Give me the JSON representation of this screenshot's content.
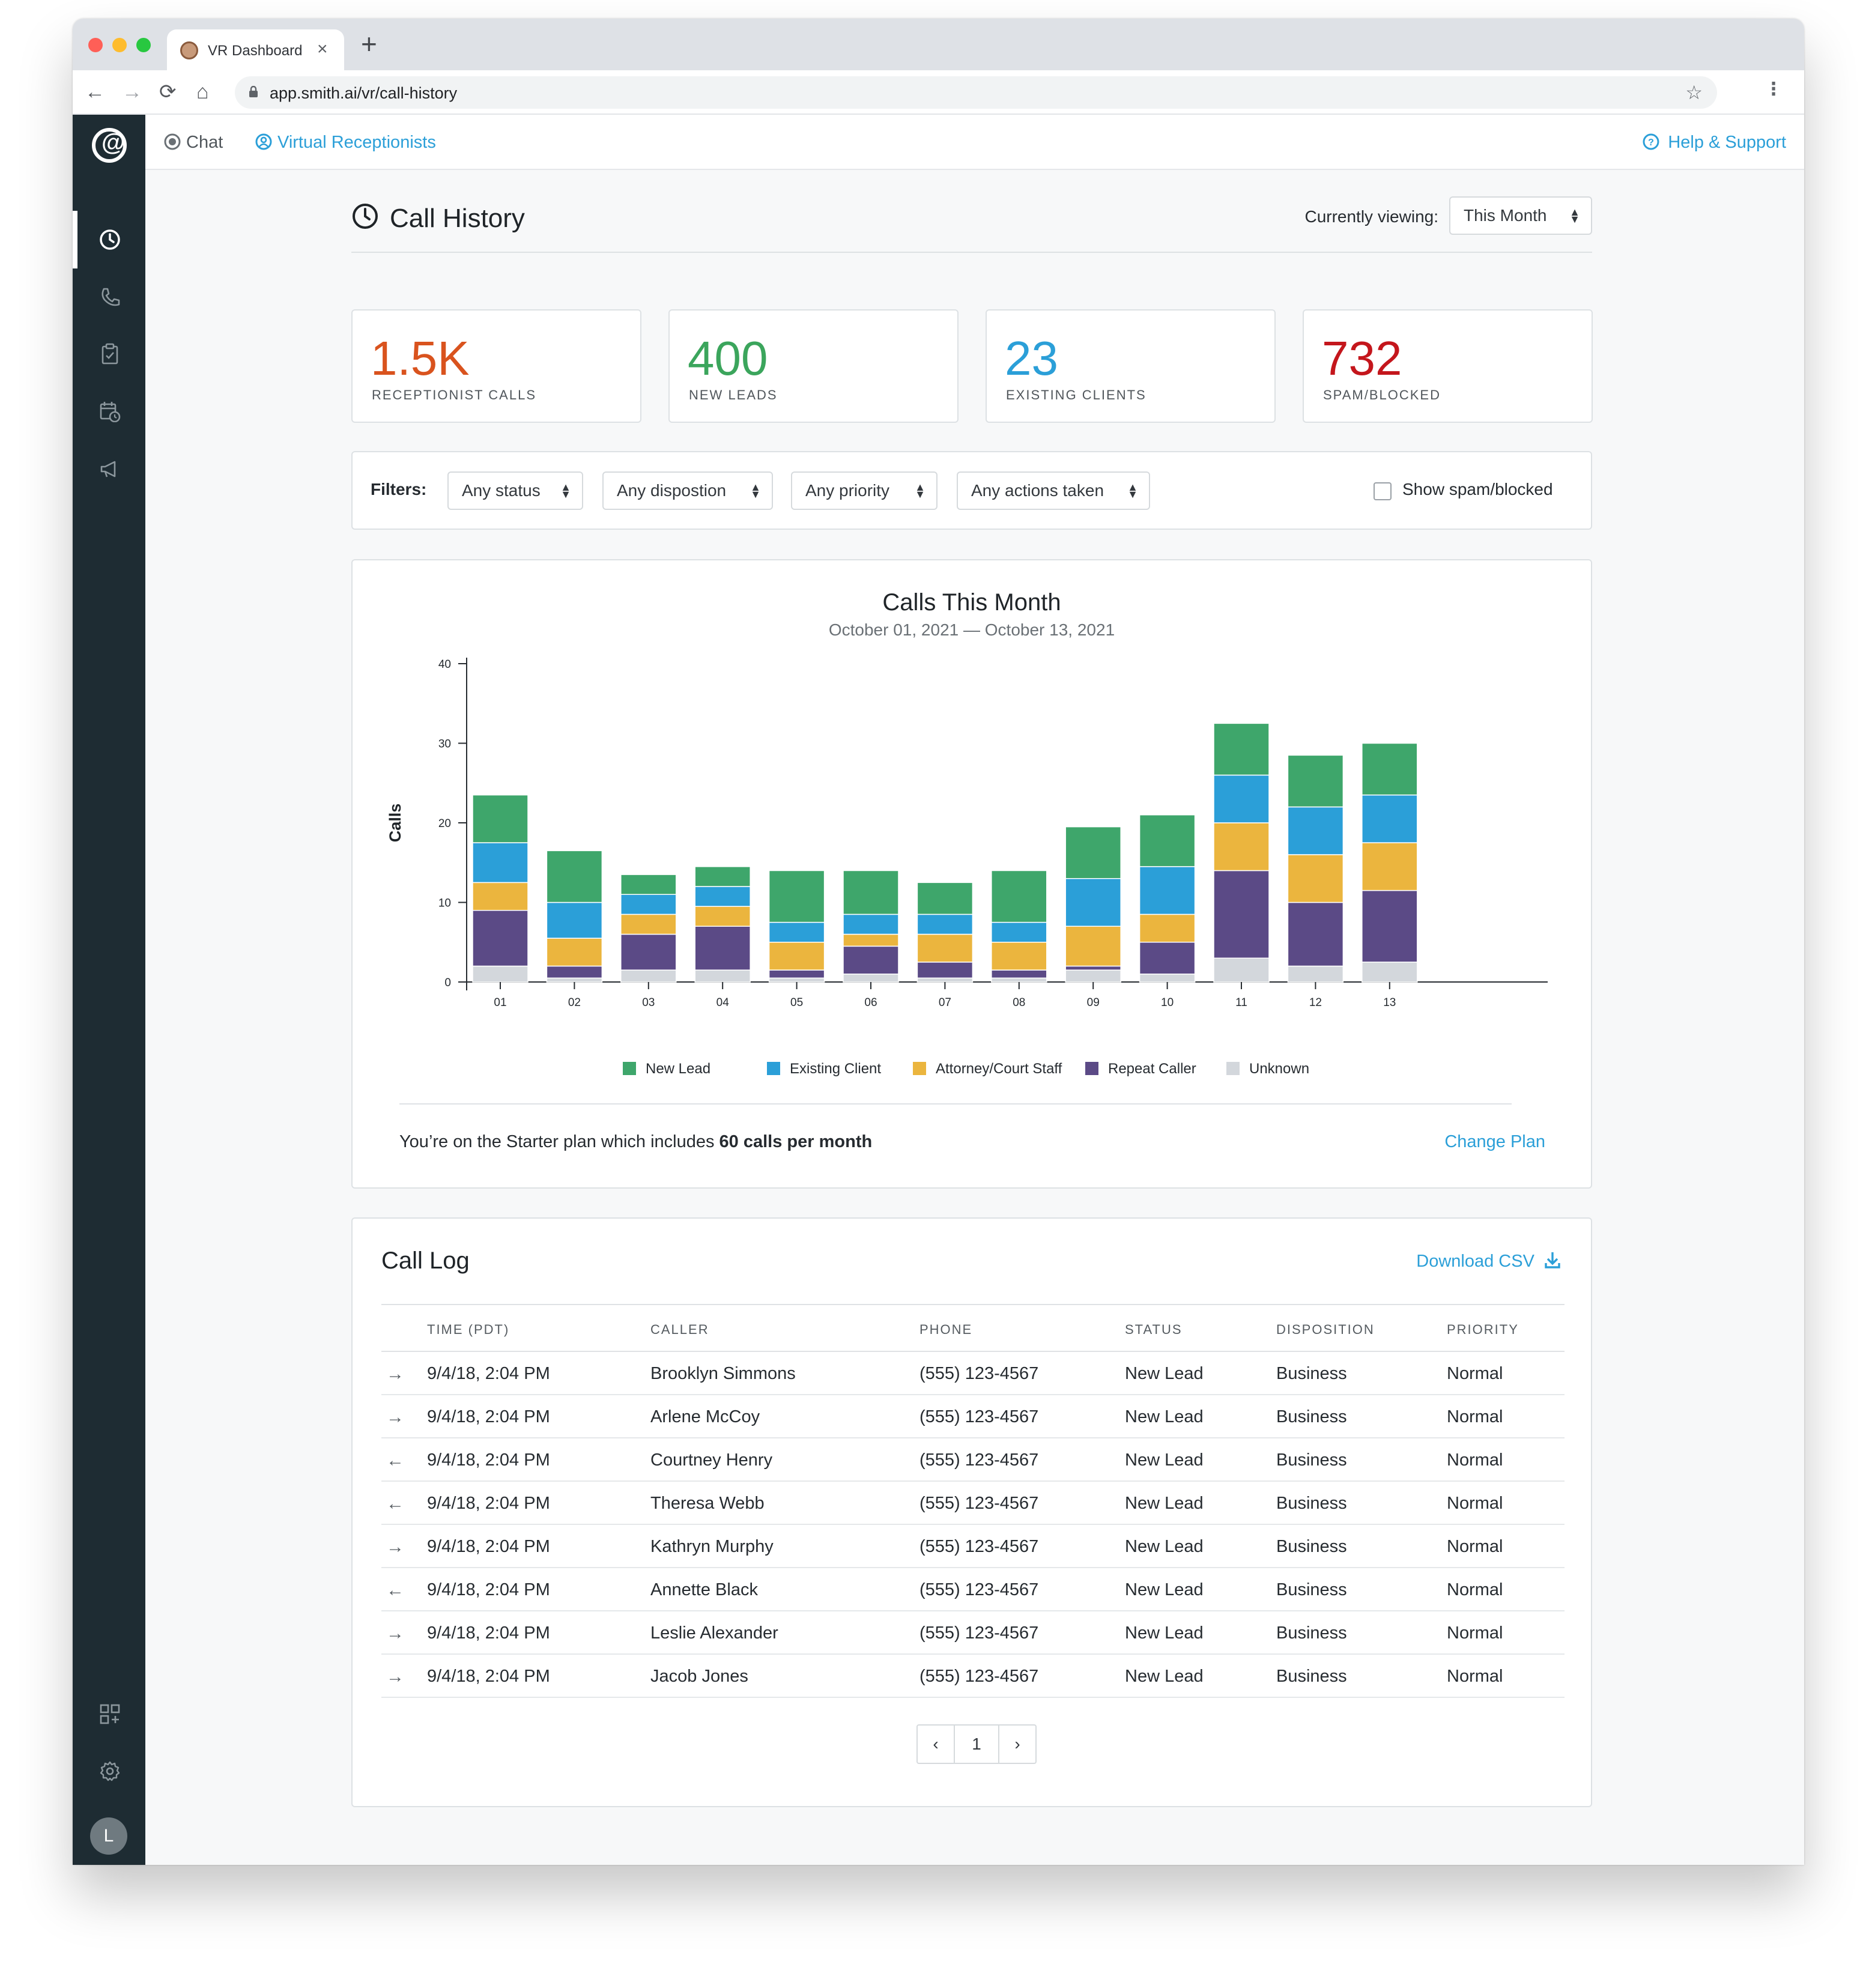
{
  "browser": {
    "tab_title": "VR Dashboard",
    "tab_close": "×",
    "new_tab": "+",
    "url": "app.smith.ai/vr/call-history",
    "back": "←",
    "forward": "→",
    "reload": "⟳",
    "home": "⌂",
    "bookmark": "☆",
    "menu": "⋮",
    "traffic_lights": [
      "#ff5f57",
      "#febc2e",
      "#28c840"
    ]
  },
  "sidebar": {
    "logo": "@",
    "items": [
      "clock-icon",
      "phone-icon",
      "clipboard-icon",
      "calendar-icon",
      "megaphone-icon"
    ],
    "bottom_items": [
      "apps-icon",
      "gear-icon"
    ],
    "avatar_initial": "L"
  },
  "topnav": {
    "chat": "Chat",
    "virtual_receptionists": "Virtual Receptionists",
    "help": "Help & Support"
  },
  "header": {
    "title": "Call History",
    "viewing_label": "Currently viewing:",
    "viewing_value": "This Month"
  },
  "stats": [
    {
      "value": "1.5K",
      "label": "RECEPTIONIST CALLS",
      "color": "#d9531e"
    },
    {
      "value": "400",
      "label": "NEW LEADS",
      "color": "#3ba55c"
    },
    {
      "value": "23",
      "label": "EXISTING CLIENTS",
      "color": "#2b9fd8"
    },
    {
      "value": "732",
      "label": "SPAM/BLOCKED",
      "color": "#c4161c"
    }
  ],
  "filters": {
    "label": "Filters:",
    "status": "Any status",
    "disposition": "Any dispostion",
    "priority": "Any priority",
    "actions": "Any actions taken",
    "spam_toggle": "Show spam/blocked"
  },
  "chart_data": {
    "type": "bar",
    "stacked": true,
    "title": "Calls This Month",
    "subtitle": "October 01, 2021 — October 13, 2021",
    "ylabel": "Calls",
    "xlabel": "",
    "ylim": [
      0,
      40
    ],
    "yticks": [
      0,
      10,
      20,
      30,
      40
    ],
    "categories": [
      "01",
      "02",
      "03",
      "04",
      "05",
      "06",
      "07",
      "08",
      "09",
      "10",
      "11",
      "12",
      "13"
    ],
    "series": [
      {
        "name": "Unknown",
        "color": "#d3d7dc",
        "values": [
          2,
          0.5,
          1.5,
          1.5,
          0.5,
          1,
          0.5,
          0.5,
          1.5,
          1,
          3,
          2,
          2.5
        ]
      },
      {
        "name": "Repeat Caller",
        "color": "#5b4a86",
        "values": [
          7,
          1.5,
          4.5,
          5.5,
          1,
          3.5,
          2,
          1,
          0.5,
          4,
          11,
          8,
          9
        ]
      },
      {
        "name": "Attorney/Court Staff",
        "color": "#ebb53e",
        "values": [
          3.5,
          3.5,
          2.5,
          2.5,
          3.5,
          1.5,
          3.5,
          3.5,
          5,
          3.5,
          6,
          6,
          6
        ]
      },
      {
        "name": "Existing Client",
        "color": "#2b9fd8",
        "values": [
          5,
          4.5,
          2.5,
          2.5,
          2.5,
          2.5,
          2.5,
          2.5,
          6,
          6,
          6,
          6,
          6
        ]
      },
      {
        "name": "New Lead",
        "color": "#3ea66b",
        "values": [
          6,
          6.5,
          2.5,
          2.5,
          6.5,
          5.5,
          4,
          6.5,
          6.5,
          6.5,
          6.5,
          6.5,
          6.5
        ]
      }
    ],
    "legend_order": [
      "New Lead",
      "Existing Client",
      "Attorney/Court Staff",
      "Repeat Caller",
      "Unknown"
    ],
    "legend_position": "bottom-center"
  },
  "plan": {
    "text_before": "You’re on the Starter plan which includes ",
    "text_bold": "60 calls per month",
    "change": "Change Plan"
  },
  "log": {
    "title": "Call Log",
    "download": "Download CSV",
    "columns": [
      "TIME (PDT)",
      "CALLER",
      "PHONE",
      "STATUS",
      "DISPOSITION",
      "PRIORITY"
    ],
    "rows": [
      {
        "dir": "→",
        "time": "9/4/18, 2:04 PM",
        "caller": "Brooklyn Simmons",
        "phone": "(555) 123-4567",
        "status": "New Lead",
        "disposition": "Business",
        "priority": "Normal"
      },
      {
        "dir": "→",
        "time": "9/4/18, 2:04 PM",
        "caller": "Arlene McCoy",
        "phone": "(555) 123-4567",
        "status": "New Lead",
        "disposition": "Business",
        "priority": "Normal"
      },
      {
        "dir": "←",
        "time": "9/4/18, 2:04 PM",
        "caller": "Courtney Henry",
        "phone": "(555) 123-4567",
        "status": "New Lead",
        "disposition": "Business",
        "priority": "Normal"
      },
      {
        "dir": "←",
        "time": "9/4/18, 2:04 PM",
        "caller": "Theresa Webb",
        "phone": "(555) 123-4567",
        "status": "New Lead",
        "disposition": "Business",
        "priority": "Normal"
      },
      {
        "dir": "→",
        "time": "9/4/18, 2:04 PM",
        "caller": "Kathryn Murphy",
        "phone": "(555) 123-4567",
        "status": "New Lead",
        "disposition": "Business",
        "priority": "Normal"
      },
      {
        "dir": "←",
        "time": "9/4/18, 2:04 PM",
        "caller": "Annette Black",
        "phone": "(555) 123-4567",
        "status": "New Lead",
        "disposition": "Business",
        "priority": "Normal"
      },
      {
        "dir": "→",
        "time": "9/4/18, 2:04 PM",
        "caller": "Leslie Alexander",
        "phone": "(555) 123-4567",
        "status": "New Lead",
        "disposition": "Business",
        "priority": "Normal"
      },
      {
        "dir": "→",
        "time": "9/4/18, 2:04 PM",
        "caller": "Jacob Jones",
        "phone": "(555) 123-4567",
        "status": "New Lead",
        "disposition": "Business",
        "priority": "Normal"
      }
    ],
    "pager": {
      "prev": "‹",
      "page": "1",
      "next": "›"
    }
  }
}
